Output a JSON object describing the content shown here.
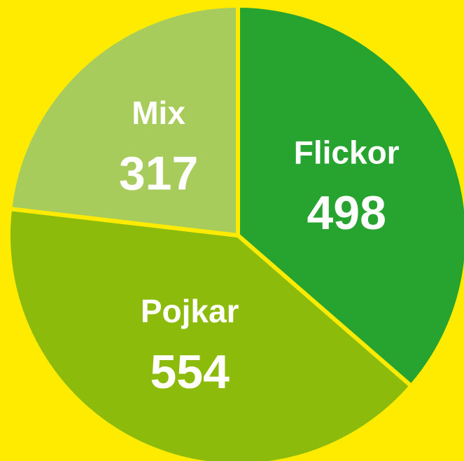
{
  "chart_data": {
    "type": "pie",
    "categories": [
      "Flickor",
      "Pojkar",
      "Mix"
    ],
    "values": [
      498,
      554,
      317
    ],
    "colors": [
      "#27a42f",
      "#8dbb0b",
      "#a8cc5c"
    ]
  }
}
